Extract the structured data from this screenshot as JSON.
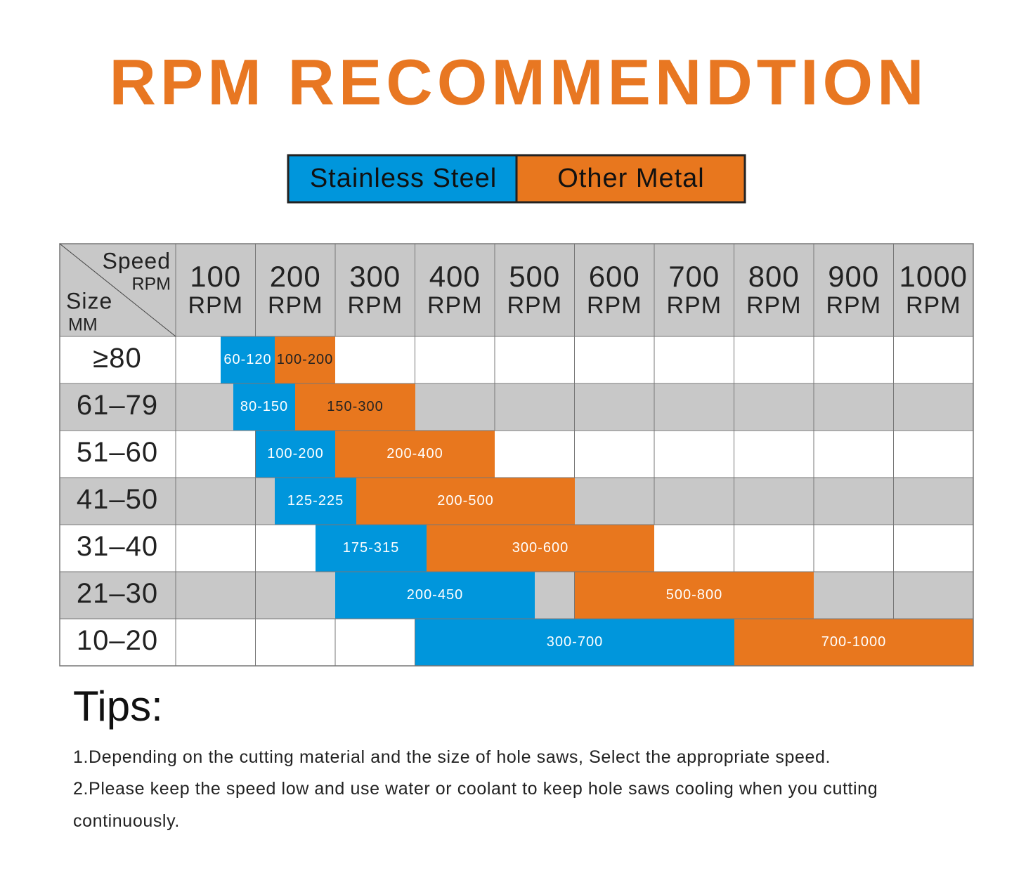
{
  "title": "RPM RECOMMENDTION",
  "legend": [
    "Stainless Steel",
    "Other Metal"
  ],
  "table": {
    "corner": {
      "speed": "Speed",
      "speed_unit": "RPM",
      "size": "Size",
      "size_unit": "MM"
    },
    "columns": [
      {
        "value": "100",
        "unit": "RPM"
      },
      {
        "value": "200",
        "unit": "RPM"
      },
      {
        "value": "300",
        "unit": "RPM"
      },
      {
        "value": "400",
        "unit": "RPM"
      },
      {
        "value": "500",
        "unit": "RPM"
      },
      {
        "value": "600",
        "unit": "RPM"
      },
      {
        "value": "700",
        "unit": "RPM"
      },
      {
        "value": "800",
        "unit": "RPM"
      },
      {
        "value": "900",
        "unit": "RPM"
      },
      {
        "value": "1000",
        "unit": "RPM"
      }
    ],
    "rows": [
      {
        "size": "≥80",
        "stainless": "60-120",
        "other": "100-200"
      },
      {
        "size": "61–79",
        "stainless": "80-150",
        "other": "150-300"
      },
      {
        "size": "51–60",
        "stainless": "100-200",
        "other": "200-400"
      },
      {
        "size": "41–50",
        "stainless": "125-225",
        "other": "200-500"
      },
      {
        "size": "31–40",
        "stainless": "175-315",
        "other": "300-600"
      },
      {
        "size": "21–30",
        "stainless": "200-450",
        "other": "500-800"
      },
      {
        "size": "10–20",
        "stainless": "300-700",
        "other": "700-1000"
      }
    ]
  },
  "tips": {
    "heading": "Tips:",
    "items": [
      "1.Depending on the cutting material and the size of hole saws, Select the appropriate speed.",
      "2.Please keep the speed low and use water or coolant to keep hole saws cooling when you cutting continuously."
    ]
  }
}
